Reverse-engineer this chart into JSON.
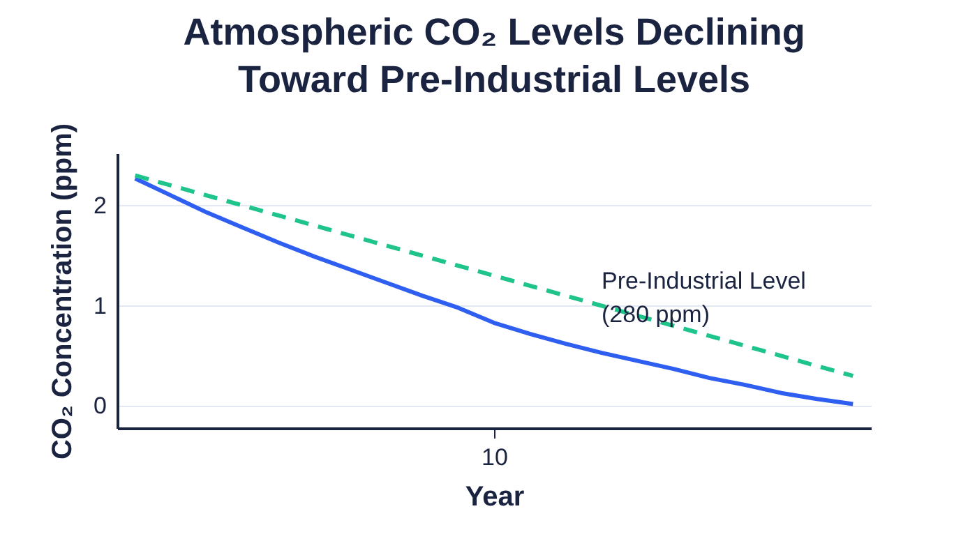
{
  "chart_data": {
    "type": "line",
    "title": "Atmospheric CO₂ Levels Declining Toward Pre-Industrial Levels",
    "xlabel": "Year",
    "ylabel": "CO₂ Concentration (ppm)",
    "categories": [
      null,
      null,
      null,
      null,
      null,
      null,
      null,
      null,
      null,
      null,
      "10",
      null,
      null,
      null,
      null,
      null,
      null,
      null,
      null,
      null,
      null
    ],
    "ylim": [
      -0.22,
      2.52
    ],
    "yticks": [
      0,
      1,
      2
    ],
    "grid": "y",
    "line_style": "solid",
    "series": [
      {
        "color": "#2f5ff0",
        "values": [
          2.27,
          2.1,
          1.93,
          1.78,
          1.63,
          1.49,
          1.36,
          1.23,
          1.1,
          0.98,
          0.83,
          0.72,
          0.62,
          0.53,
          0.45,
          0.37,
          0.28,
          0.21,
          0.13,
          0.07,
          0.02
        ]
      },
      {
        "color": "#1ec48a",
        "line_style": "dashed",
        "values": [
          2.3,
          null,
          null,
          null,
          null,
          null,
          null,
          null,
          null,
          null,
          null,
          null,
          null,
          null,
          null,
          null,
          null,
          null,
          null,
          null,
          0.3
        ]
      }
    ],
    "annotations": [
      "Pre-Industrial Level (280 ppm)"
    ]
  }
}
